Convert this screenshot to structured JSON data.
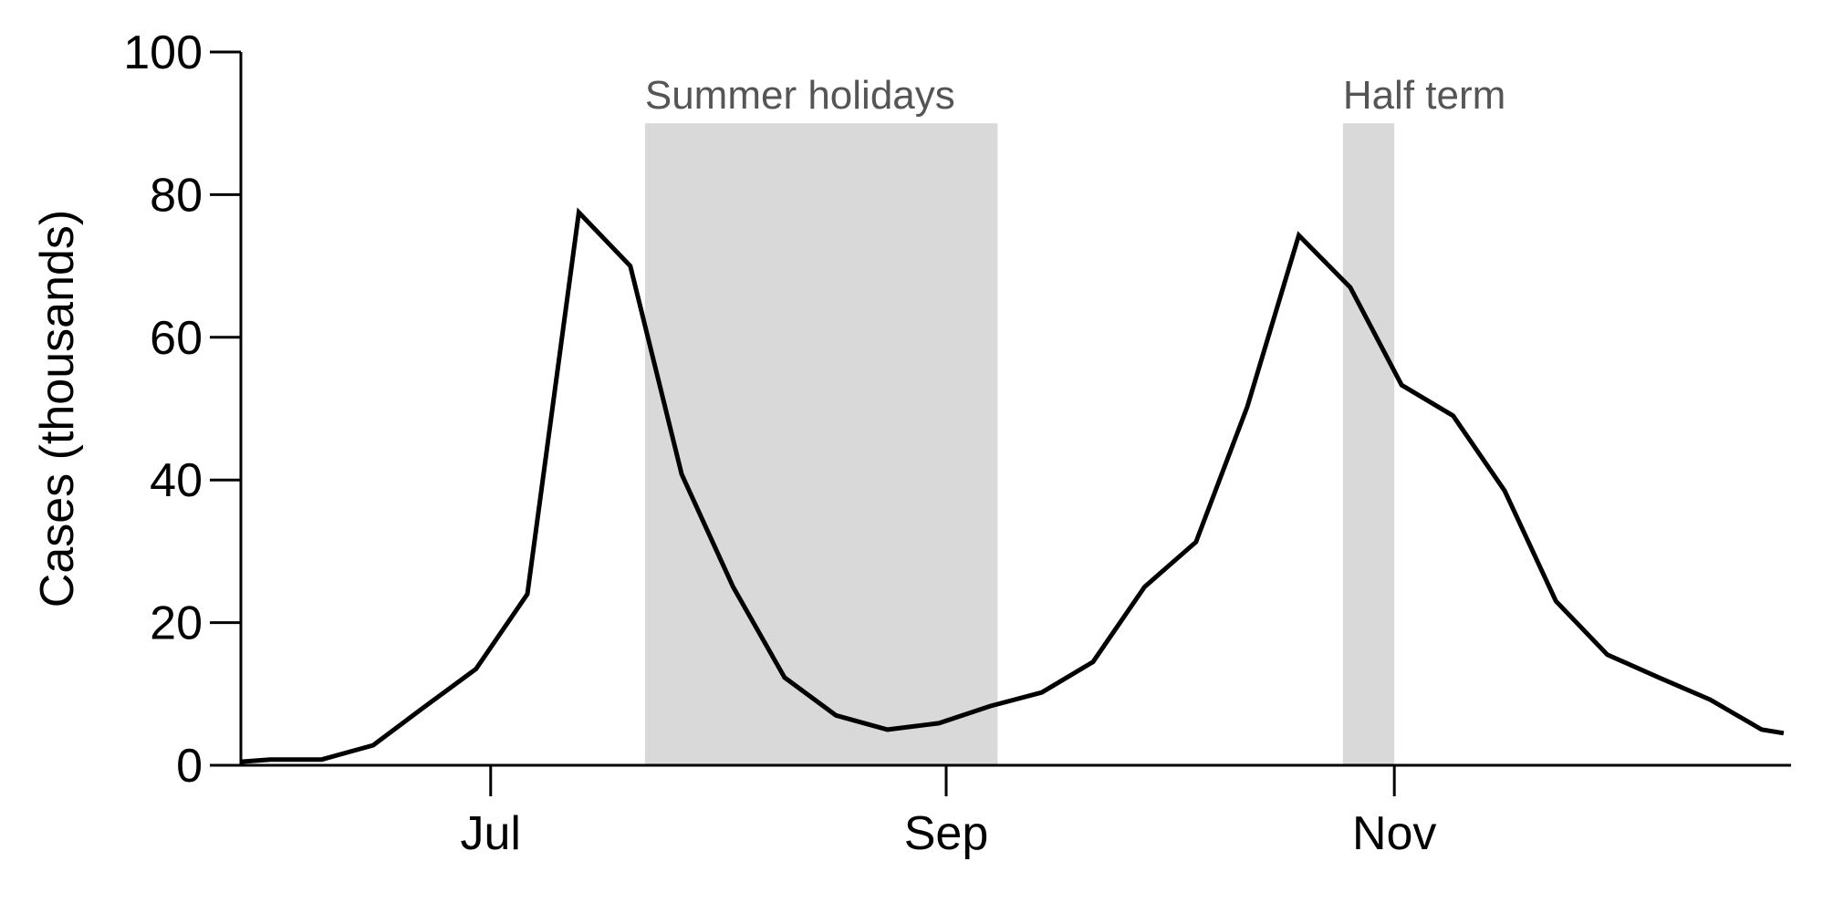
{
  "chart_data": {
    "type": "line",
    "title": "",
    "xlabel": "",
    "ylabel": "Cases (thousands)",
    "ylim": [
      0,
      100
    ],
    "yticks": [
      0,
      20,
      40,
      60,
      80,
      100
    ],
    "xlim": [
      "2021-05-28",
      "2021-12-25"
    ],
    "xticks": [
      {
        "label": "Jul",
        "date": "2021-07-01"
      },
      {
        "label": "Sep",
        "date": "2021-09-01"
      },
      {
        "label": "Nov",
        "date": "2021-11-01"
      }
    ],
    "grid": false,
    "legend": "none",
    "line_color": "#000000",
    "band_color": "#d9d9d9",
    "band_label_color": "#555555",
    "bands": [
      {
        "label": "Summer holidays",
        "start": "2021-07-22",
        "end": "2021-09-08",
        "top": 90
      },
      {
        "label": "Half term",
        "start": "2021-10-25",
        "end": "2021-11-01",
        "top": 90
      }
    ],
    "series": [
      {
        "points": [
          {
            "x": "2021-05-28",
            "y": 0.5
          },
          {
            "x": "2021-06-01",
            "y": 0.8
          },
          {
            "x": "2021-06-08",
            "y": 0.8
          },
          {
            "x": "2021-06-15",
            "y": 2.8
          },
          {
            "x": "2021-06-22",
            "y": 8.2
          },
          {
            "x": "2021-06-29",
            "y": 13.5
          },
          {
            "x": "2021-07-06",
            "y": 24.0
          },
          {
            "x": "2021-07-13",
            "y": 77.5
          },
          {
            "x": "2021-07-20",
            "y": 70.0
          },
          {
            "x": "2021-07-27",
            "y": 40.8
          },
          {
            "x": "2021-08-03",
            "y": 25.0
          },
          {
            "x": "2021-08-10",
            "y": 12.3
          },
          {
            "x": "2021-08-17",
            "y": 7.0
          },
          {
            "x": "2021-08-24",
            "y": 5.0
          },
          {
            "x": "2021-08-31",
            "y": 5.9
          },
          {
            "x": "2021-09-07",
            "y": 8.3
          },
          {
            "x": "2021-09-14",
            "y": 10.2
          },
          {
            "x": "2021-09-21",
            "y": 14.5
          },
          {
            "x": "2021-09-28",
            "y": 25.0
          },
          {
            "x": "2021-10-05",
            "y": 31.3
          },
          {
            "x": "2021-10-12",
            "y": 50.3
          },
          {
            "x": "2021-10-19",
            "y": 74.3
          },
          {
            "x": "2021-10-26",
            "y": 67.0
          },
          {
            "x": "2021-11-02",
            "y": 53.3
          },
          {
            "x": "2021-11-09",
            "y": 49.0
          },
          {
            "x": "2021-11-16",
            "y": 38.5
          },
          {
            "x": "2021-11-23",
            "y": 23.0
          },
          {
            "x": "2021-11-30",
            "y": 15.5
          },
          {
            "x": "2021-12-07",
            "y": 12.3
          },
          {
            "x": "2021-12-14",
            "y": 9.2
          },
          {
            "x": "2021-12-21",
            "y": 5.0
          },
          {
            "x": "2021-12-24",
            "y": 4.5
          }
        ]
      }
    ]
  }
}
